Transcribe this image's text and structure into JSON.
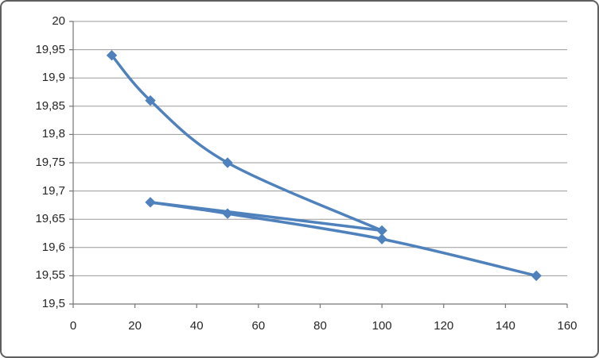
{
  "chart_data": {
    "type": "line",
    "chart_style": "excel-xy-scatter-smooth-lines-with-markers",
    "title": "",
    "xlabel": "",
    "ylabel": "",
    "legend": "none",
    "grid": "horizontal",
    "x_range": [
      0,
      160
    ],
    "y_range": [
      19.5,
      20
    ],
    "x_ticks": [
      0,
      20,
      40,
      60,
      80,
      100,
      120,
      140,
      160
    ],
    "x_tick_labels": [
      "0",
      "20",
      "40",
      "60",
      "80",
      "100",
      "120",
      "140",
      "160"
    ],
    "y_ticks": [
      20,
      19.95,
      19.9,
      19.85,
      19.8,
      19.75,
      19.7,
      19.65,
      19.6,
      19.55,
      19.5
    ],
    "y_tick_labels": [
      "20",
      "19,95",
      "19,9",
      "19,85",
      "19,8",
      "19,75",
      "19,7",
      "19,65",
      "19,6",
      "19,55",
      "19,5"
    ],
    "decimal_separator": ",",
    "series": [
      {
        "name": "series-1",
        "color": "#4F81BD",
        "marker": "diamond",
        "marker_size": 12,
        "line_width": 3.5,
        "points": [
          [
            12.5,
            19.94
          ],
          [
            25,
            19.86
          ],
          [
            50,
            19.75
          ],
          [
            100,
            19.63
          ],
          [
            25,
            19.68
          ],
          [
            50,
            19.66
          ],
          [
            100,
            19.615
          ],
          [
            150,
            19.55
          ]
        ],
        "draw_segments": [
          {
            "smooth": true,
            "point_indices": [
              0,
              1,
              2,
              3
            ]
          },
          {
            "smooth": false,
            "point_indices": [
              3,
              4
            ]
          },
          {
            "smooth": true,
            "point_indices": [
              4,
              5,
              6,
              7
            ]
          }
        ]
      }
    ],
    "colors": {
      "gridline": "#9A9A9A",
      "axis": "#767676",
      "tick_label": "#262626",
      "background": "#FFFFFF",
      "frame_border": "#5F5F5F"
    }
  }
}
